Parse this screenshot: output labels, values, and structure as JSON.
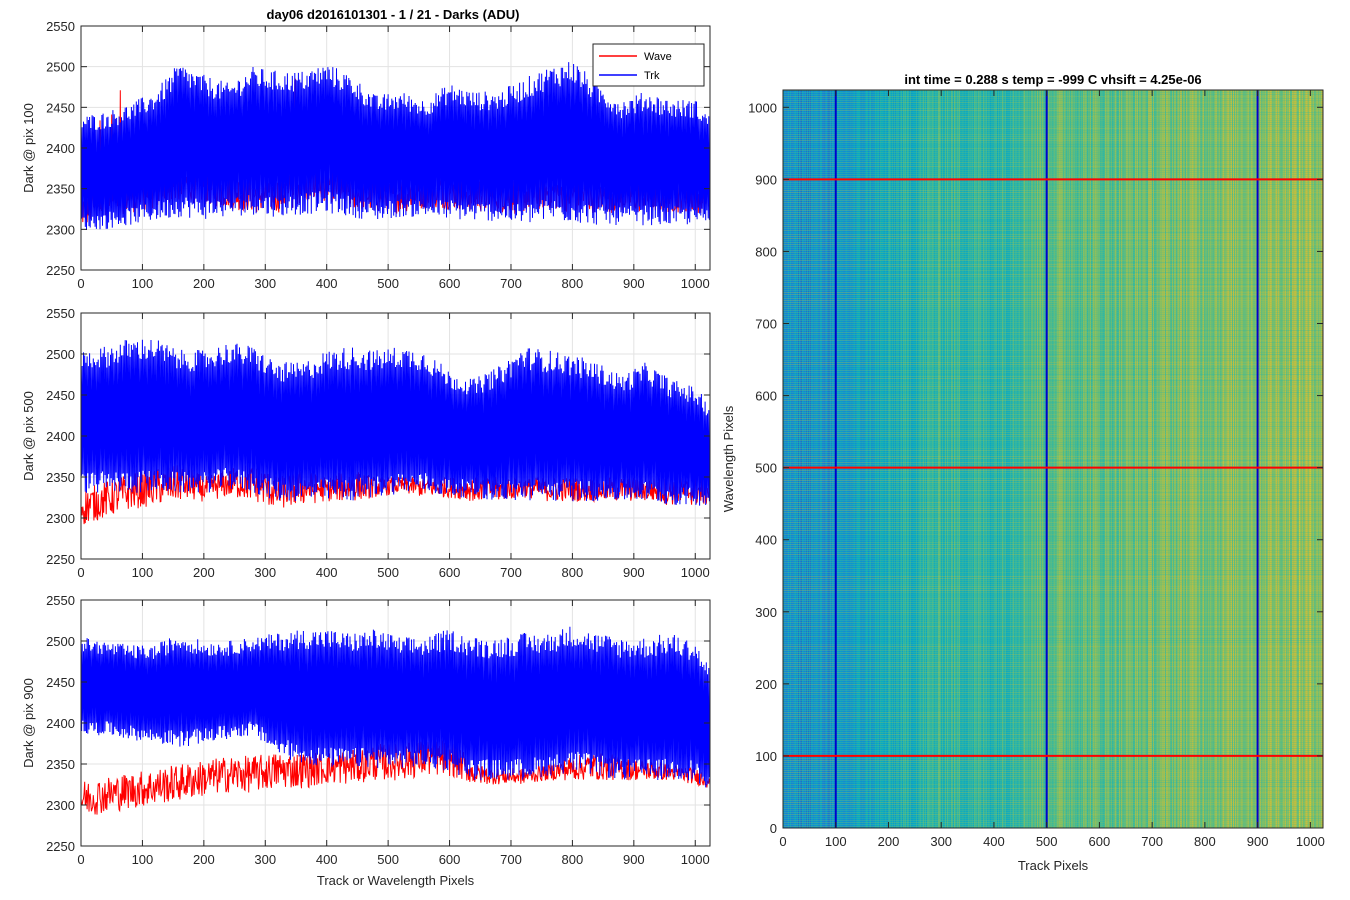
{
  "figure": {
    "title": "day06 d2016101301 - 1 / 21 - Darks (ADU)",
    "left_xlabel": "Track or Wavelength Pixels"
  },
  "chart_data": [
    {
      "type": "line",
      "ylabel": "Dark @ pix 100",
      "xlim": [
        0,
        1024
      ],
      "ylim": [
        2250,
        2550
      ],
      "xticks": [
        0,
        100,
        200,
        300,
        400,
        500,
        600,
        700,
        800,
        900,
        1000
      ],
      "yticks": [
        2250,
        2300,
        2350,
        2400,
        2450,
        2500,
        2550
      ],
      "grid": true,
      "legend": {
        "placement": "top-right",
        "entries": [
          "Wave",
          "Trk"
        ]
      },
      "series": [
        {
          "name": "Wave",
          "color": "#ff0000",
          "x": [
            0,
            40,
            80,
            120,
            160,
            200,
            240,
            280,
            320,
            360,
            400,
            440,
            480,
            520,
            560,
            600,
            640,
            680,
            720,
            760,
            800,
            840,
            880,
            920,
            960,
            1000,
            1023
          ],
          "low": [
            2300,
            2315,
            2320,
            2325,
            2335,
            2330,
            2325,
            2320,
            2320,
            2330,
            2335,
            2325,
            2320,
            2320,
            2325,
            2325,
            2320,
            2320,
            2320,
            2325,
            2320,
            2320,
            2320,
            2320,
            2320,
            2320,
            2320
          ],
          "high": [
            2482,
            2420,
            2505,
            2508,
            2420,
            2420,
            2420,
            2420,
            2420,
            2510,
            2420,
            2420,
            2420,
            2420,
            2420,
            2420,
            2420,
            2420,
            2420,
            2420,
            2420,
            2420,
            2420,
            2420,
            2420,
            2420,
            2420
          ]
        },
        {
          "name": "Trk",
          "color": "#0000ff",
          "x": [
            0,
            40,
            80,
            120,
            160,
            200,
            240,
            280,
            320,
            360,
            400,
            440,
            480,
            520,
            560,
            600,
            640,
            680,
            720,
            760,
            800,
            840,
            880,
            920,
            960,
            1000,
            1023
          ],
          "low": [
            2298,
            2300,
            2305,
            2310,
            2315,
            2312,
            2315,
            2318,
            2315,
            2318,
            2320,
            2315,
            2310,
            2315,
            2315,
            2312,
            2310,
            2310,
            2305,
            2310,
            2308,
            2305,
            2305,
            2305,
            2305,
            2305,
            2305
          ],
          "high": [
            2440,
            2445,
            2455,
            2470,
            2505,
            2490,
            2480,
            2500,
            2495,
            2495,
            2505,
            2490,
            2465,
            2470,
            2460,
            2480,
            2470,
            2470,
            2485,
            2500,
            2510,
            2480,
            2460,
            2470,
            2460,
            2460,
            2440
          ]
        }
      ]
    },
    {
      "type": "line",
      "ylabel": "Dark @ pix 500",
      "xlim": [
        0,
        1024
      ],
      "ylim": [
        2250,
        2550
      ],
      "xticks": [
        0,
        100,
        200,
        300,
        400,
        500,
        600,
        700,
        800,
        900,
        1000
      ],
      "yticks": [
        2250,
        2300,
        2350,
        2400,
        2450,
        2500,
        2550
      ],
      "grid": true,
      "series": [
        {
          "name": "Wave",
          "color": "#ff0000",
          "x": [
            0,
            40,
            80,
            120,
            160,
            200,
            240,
            280,
            320,
            360,
            400,
            440,
            480,
            520,
            560,
            600,
            640,
            680,
            720,
            760,
            800,
            840,
            880,
            920,
            960,
            1000,
            1023
          ],
          "low": [
            2290,
            2300,
            2310,
            2315,
            2320,
            2320,
            2325,
            2320,
            2310,
            2315,
            2320,
            2320,
            2325,
            2330,
            2325,
            2325,
            2320,
            2320,
            2325,
            2320,
            2320,
            2320,
            2320,
            2320,
            2315,
            2315,
            2315
          ],
          "high": [
            2360,
            2360,
            2355,
            2365,
            2370,
            2350,
            2360,
            2370,
            2350,
            2360,
            2350,
            2360,
            2350,
            2350,
            2350,
            2350,
            2350,
            2350,
            2350,
            2350,
            2350,
            2350,
            2350,
            2350,
            2350,
            2350,
            2350
          ]
        },
        {
          "name": "Trk",
          "color": "#0000ff",
          "x": [
            0,
            40,
            80,
            120,
            160,
            200,
            240,
            280,
            320,
            360,
            400,
            440,
            480,
            520,
            560,
            600,
            640,
            680,
            720,
            760,
            800,
            840,
            880,
            920,
            960,
            1000,
            1023
          ],
          "low": [
            2330,
            2330,
            2330,
            2330,
            2330,
            2330,
            2335,
            2330,
            2320,
            2320,
            2320,
            2320,
            2325,
            2330,
            2330,
            2325,
            2325,
            2320,
            2320,
            2320,
            2320,
            2320,
            2320,
            2320,
            2315,
            2315,
            2315
          ],
          "high": [
            2505,
            2510,
            2520,
            2520,
            2505,
            2505,
            2515,
            2510,
            2490,
            2490,
            2505,
            2510,
            2505,
            2510,
            2505,
            2480,
            2470,
            2485,
            2510,
            2505,
            2500,
            2490,
            2475,
            2490,
            2470,
            2460,
            2440
          ]
        }
      ]
    },
    {
      "type": "line",
      "ylabel": "Dark @ pix 900",
      "xlabel": "Track or Wavelength Pixels",
      "xlim": [
        0,
        1024
      ],
      "ylim": [
        2250,
        2550
      ],
      "xticks": [
        0,
        100,
        200,
        300,
        400,
        500,
        600,
        700,
        800,
        900,
        1000
      ],
      "yticks": [
        2250,
        2300,
        2350,
        2400,
        2450,
        2500,
        2550
      ],
      "grid": true,
      "series": [
        {
          "name": "Wave",
          "color": "#ff0000",
          "x": [
            0,
            40,
            80,
            120,
            160,
            200,
            240,
            280,
            320,
            360,
            400,
            440,
            480,
            520,
            560,
            600,
            640,
            680,
            720,
            760,
            800,
            840,
            880,
            920,
            960,
            1000,
            1023
          ],
          "low": [
            2285,
            2290,
            2295,
            2300,
            2305,
            2310,
            2315,
            2315,
            2320,
            2320,
            2325,
            2325,
            2330,
            2330,
            2335,
            2335,
            2325,
            2325,
            2325,
            2330,
            2330,
            2330,
            2330,
            2330,
            2330,
            2325,
            2320
          ],
          "high": [
            2330,
            2335,
            2340,
            2350,
            2350,
            2355,
            2360,
            2370,
            2370,
            2365,
            2365,
            2370,
            2375,
            2380,
            2385,
            2385,
            2350,
            2345,
            2345,
            2350,
            2360,
            2365,
            2360,
            2355,
            2350,
            2345,
            2340
          ]
        },
        {
          "name": "Trk",
          "color": "#0000ff",
          "x": [
            0,
            40,
            80,
            120,
            160,
            200,
            240,
            280,
            320,
            360,
            400,
            440,
            480,
            520,
            560,
            600,
            640,
            680,
            720,
            760,
            800,
            840,
            880,
            920,
            960,
            1000,
            1023
          ],
          "low": [
            2385,
            2385,
            2380,
            2375,
            2370,
            2375,
            2380,
            2385,
            2360,
            2350,
            2345,
            2345,
            2345,
            2345,
            2345,
            2340,
            2330,
            2330,
            2330,
            2335,
            2340,
            2335,
            2330,
            2330,
            2330,
            2330,
            2310
          ],
          "high": [
            2505,
            2500,
            2495,
            2495,
            2510,
            2500,
            2500,
            2505,
            2510,
            2515,
            2515,
            2510,
            2515,
            2505,
            2505,
            2515,
            2505,
            2505,
            2510,
            2510,
            2520,
            2510,
            2505,
            2505,
            2510,
            2500,
            2470
          ]
        }
      ]
    },
    {
      "type": "heatmap",
      "title": "int time = 0.288 s   temp = -999 C   vhsift = 4.25e-06",
      "xlabel": "Track Pixels",
      "ylabel": "Wavelength Pixels",
      "xlim": [
        0,
        1024
      ],
      "ylim": [
        0,
        1024
      ],
      "xticks": [
        0,
        100,
        200,
        300,
        400,
        500,
        600,
        700,
        800,
        900,
        1000
      ],
      "yticks": [
        0,
        100,
        200,
        300,
        400,
        500,
        600,
        700,
        800,
        900,
        1000
      ],
      "colormap": "parula",
      "grid": false,
      "column_intensity": {
        "x": [
          0,
          100,
          200,
          300,
          400,
          500,
          600,
          700,
          800,
          900,
          1023
        ],
        "level": [
          0.3,
          0.32,
          0.45,
          0.58,
          0.55,
          0.7,
          0.68,
          0.72,
          0.75,
          0.78,
          0.8
        ]
      },
      "overlays": {
        "vertical_lines": {
          "color": "#0000cc",
          "x": [
            100,
            500,
            900
          ]
        },
        "horizontal_lines": {
          "color": "#ff0000",
          "y": [
            100,
            500,
            900
          ]
        }
      }
    }
  ]
}
